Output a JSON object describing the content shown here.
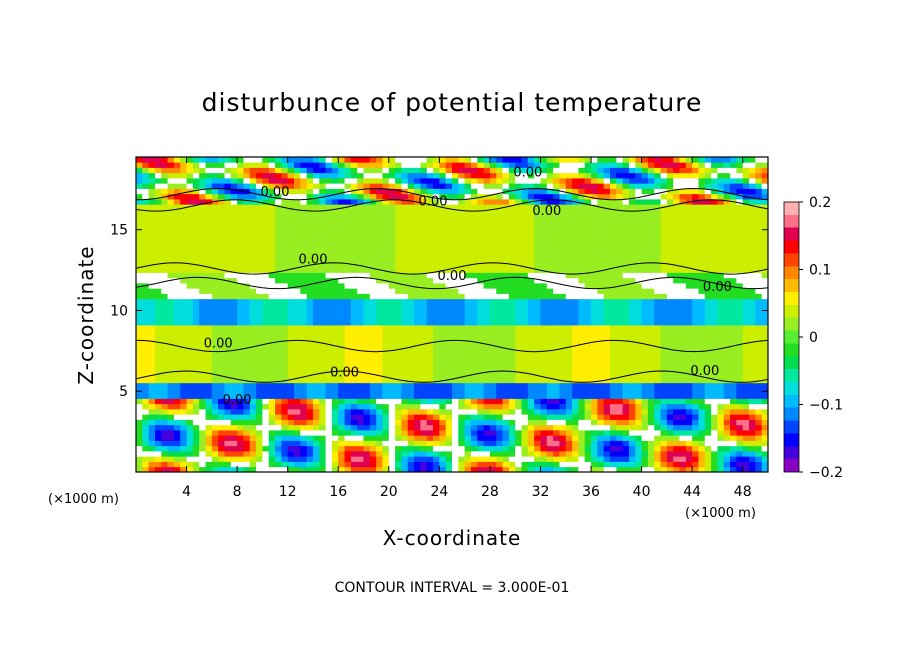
{
  "chart_data": {
    "type": "heatmap",
    "title": "disturbunce of potential temperature",
    "xlabel": "X-coordinate",
    "ylabel": "Z-coordinate",
    "x_unit": "(×1000 m)",
    "y_unit": "(×1000 m)",
    "x_ticks": [
      4,
      8,
      12,
      16,
      20,
      24,
      28,
      32,
      36,
      40,
      44,
      48
    ],
    "y_ticks": [
      5,
      10,
      15
    ],
    "xlim": [
      0,
      50
    ],
    "ylim": [
      0,
      19.5
    ],
    "colorbar": {
      "min": -0.2,
      "max": 0.2,
      "tick_labels": [
        "0.2",
        "0.1",
        "0",
        "−0.1",
        "−0.2"
      ],
      "tick_values": [
        0.2,
        0.1,
        0,
        -0.1,
        -0.2
      ],
      "colors": [
        "#8800c0",
        "#4400dd",
        "#0000ff",
        "#0044ff",
        "#0088ff",
        "#00bbff",
        "#00dddd",
        "#00e8a0",
        "#00dd50",
        "#22dd22",
        "#55ee33",
        "#99ee22",
        "#ccee00",
        "#ffee00",
        "#ffbb00",
        "#ff8800",
        "#ff4400",
        "#ff0000",
        "#e00050",
        "#ff7088",
        "#ffb0b0"
      ]
    },
    "contour_labels": [
      {
        "text": "0.00",
        "x": 31.0,
        "z": 18.3
      },
      {
        "text": "0.00",
        "x": 11.0,
        "z": 17.1
      },
      {
        "text": "0.00",
        "x": 23.5,
        "z": 16.5
      },
      {
        "text": "0.00",
        "x": 32.5,
        "z": 15.9
      },
      {
        "text": "0.00",
        "x": 14.0,
        "z": 12.9
      },
      {
        "text": "0.00",
        "x": 25.0,
        "z": 11.9
      },
      {
        "text": "0.00",
        "x": 46.0,
        "z": 11.2
      },
      {
        "text": "0.00",
        "x": 6.5,
        "z": 7.7
      },
      {
        "text": "0.00",
        "x": 16.5,
        "z": 5.9
      },
      {
        "text": "0.00",
        "x": 45.0,
        "z": 6.0
      },
      {
        "text": "0.00",
        "x": 8.0,
        "z": 4.2
      }
    ],
    "grid": false,
    "legend": "colorbar-right"
  },
  "footer": {
    "contour_interval": "CONTOUR INTERVAL = 3.000E-01"
  }
}
